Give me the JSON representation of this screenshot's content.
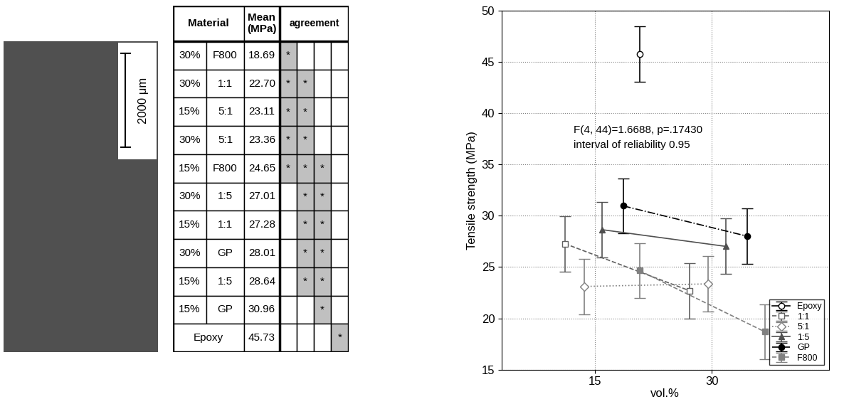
{
  "image": {
    "scale_bar": "2000 μm"
  },
  "table": {
    "header": {
      "material": "Material",
      "mean": "Mean\n(MPa)",
      "agreement": "agreement"
    },
    "rows": [
      {
        "material": [
          "30%",
          "F800"
        ],
        "mean": "18.69",
        "agreement": [
          "*",
          null,
          null,
          null
        ]
      },
      {
        "material": [
          "30%",
          "1:1"
        ],
        "mean": "22.70",
        "agreement": [
          "*",
          "*",
          null,
          null
        ]
      },
      {
        "material": [
          "15%",
          "5:1"
        ],
        "mean": "23.11",
        "agreement": [
          "*",
          "*",
          null,
          null
        ]
      },
      {
        "material": [
          "30%",
          "5:1"
        ],
        "mean": "23.36",
        "agreement": [
          "*",
          "*",
          null,
          null
        ]
      },
      {
        "material": [
          "15%",
          "F800"
        ],
        "mean": "24.65",
        "agreement": [
          "*",
          "*",
          "*",
          null
        ]
      },
      {
        "material": [
          "30%",
          "1:5"
        ],
        "mean": "27.01",
        "agreement": [
          null,
          "*",
          "*",
          null
        ]
      },
      {
        "material": [
          "15%",
          "1:1"
        ],
        "mean": "27.28",
        "agreement": [
          null,
          "*",
          "*",
          null
        ]
      },
      {
        "material": [
          "30%",
          "GP"
        ],
        "mean": "28.01",
        "agreement": [
          null,
          "*",
          "*",
          null
        ]
      },
      {
        "material": [
          "15%",
          "1:5"
        ],
        "mean": "28.64",
        "agreement": [
          null,
          "*",
          "*",
          null
        ]
      },
      {
        "material": [
          "15%",
          "GP"
        ],
        "mean": "30.96",
        "agreement": [
          null,
          null,
          "*",
          null
        ]
      },
      {
        "material": [
          "Epoxy"
        ],
        "mean": "45.73",
        "agreement": [
          null,
          null,
          null,
          "*"
        ]
      }
    ]
  },
  "chart_data": {
    "type": "errorbar",
    "x_label": "vol.%",
    "y_label": "Tensile strength (MPa)",
    "annotations": [
      "F(4, 44)=1.6688, p=.17430",
      "interval of reliability 0.95"
    ],
    "xlim": [
      3,
      45
    ],
    "xticks": [
      15,
      30
    ],
    "ylim": [
      15,
      50
    ],
    "yticks": [
      15,
      20,
      25,
      30,
      35,
      40,
      45,
      50
    ],
    "grid": true,
    "legend": "lower right",
    "series": [
      {
        "name": "Epoxy",
        "color": "#000000",
        "marker": "open_circle",
        "line_style": "solid",
        "x": [
          20.7
        ],
        "values": [
          45.73
        ],
        "errors": [
          2.7
        ]
      },
      {
        "name": "1:1",
        "color": "#606060",
        "marker": "open_square",
        "line_style": "dashed",
        "x": [
          11.1,
          27.1
        ],
        "values": [
          27.28,
          22.7
        ],
        "errors": [
          2.7,
          2.7
        ]
      },
      {
        "name": "5:1",
        "color": "#808080",
        "marker": "open_diamond",
        "line_style": "dotted",
        "x": [
          13.6,
          29.5
        ],
        "values": [
          23.11,
          23.36
        ],
        "errors": [
          2.7,
          2.7
        ]
      },
      {
        "name": "1:5",
        "color": "#505050",
        "marker": "triangle",
        "line_style": "solid",
        "x": [
          15.9,
          31.8
        ],
        "values": [
          28.64,
          27.01
        ],
        "errors": [
          2.7,
          2.7
        ]
      },
      {
        "name": "GP",
        "color": "#000000",
        "marker": "filled_circle",
        "line_style": "dashdot",
        "x": [
          18.6,
          34.5
        ],
        "values": [
          30.96,
          28.01
        ],
        "errors": [
          2.7,
          2.7
        ]
      },
      {
        "name": "F800",
        "color": "#808080",
        "marker": "filled_square",
        "line_style": "dashed",
        "x": [
          20.7,
          36.8
        ],
        "values": [
          24.65,
          18.69
        ],
        "errors": [
          2.7,
          2.7
        ]
      }
    ]
  }
}
